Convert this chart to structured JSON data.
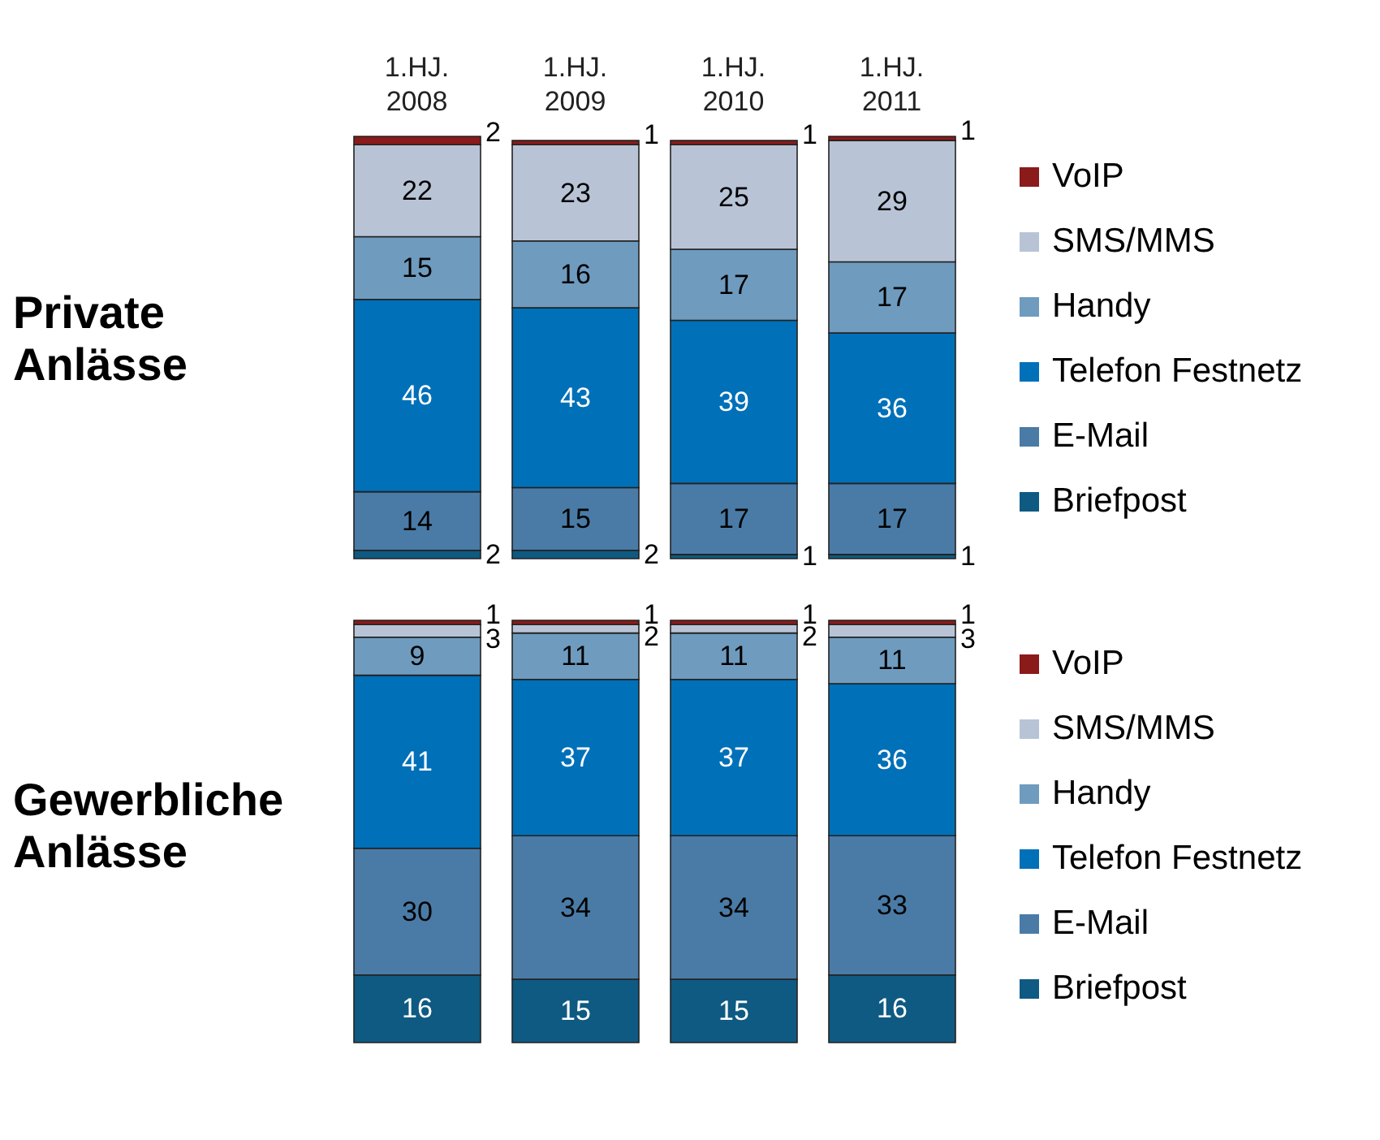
{
  "chart_data": [
    {
      "type": "bar",
      "title": "Private Anlässe",
      "categories": [
        "1.HJ. 2008",
        "1.HJ. 2009",
        "1.HJ. 2010",
        "1.HJ. 2011"
      ],
      "stacked": true,
      "data_labels": true,
      "legend": "right",
      "tick_labels": "x",
      "series": [
        {
          "name": "Briefpost",
          "color": "#0f5a82",
          "values": [
            2,
            2,
            1,
            1
          ]
        },
        {
          "name": "E-Mail",
          "color": "#4a7ba6",
          "values": [
            14,
            15,
            17,
            17
          ]
        },
        {
          "name": "Telefon Festnetz",
          "color": "#0070b8",
          "values": [
            46,
            43,
            39,
            36
          ]
        },
        {
          "name": "Handy",
          "color": "#6f9bbf",
          "values": [
            15,
            16,
            17,
            17
          ]
        },
        {
          "name": "SMS/MMS",
          "color": "#b8c4d6",
          "values": [
            22,
            23,
            25,
            29
          ]
        },
        {
          "name": "VoIP",
          "color": "#8b1a1a",
          "values": [
            2,
            1,
            1,
            1
          ]
        }
      ]
    },
    {
      "type": "bar",
      "title": "Gewerbliche Anlässe",
      "categories": [
        null,
        null,
        null,
        null
      ],
      "stacked": true,
      "data_labels": true,
      "legend": "right",
      "tick_labels": false,
      "series": [
        {
          "name": "Briefpost",
          "color": "#0f5a82",
          "values": [
            16,
            15,
            15,
            16
          ]
        },
        {
          "name": "E-Mail",
          "color": "#4a7ba6",
          "values": [
            30,
            34,
            34,
            33
          ]
        },
        {
          "name": "Telefon Festnetz",
          "color": "#0070b8",
          "values": [
            41,
            37,
            37,
            36
          ]
        },
        {
          "name": "Handy",
          "color": "#6f9bbf",
          "values": [
            9,
            11,
            11,
            11
          ]
        },
        {
          "name": "SMS/MMS",
          "color": "#b8c4d6",
          "values": [
            3,
            2,
            2,
            3
          ]
        },
        {
          "name": "VoIP",
          "color": "#8b1a1a",
          "values": [
            1,
            1,
            1,
            1
          ]
        }
      ]
    }
  ]
}
